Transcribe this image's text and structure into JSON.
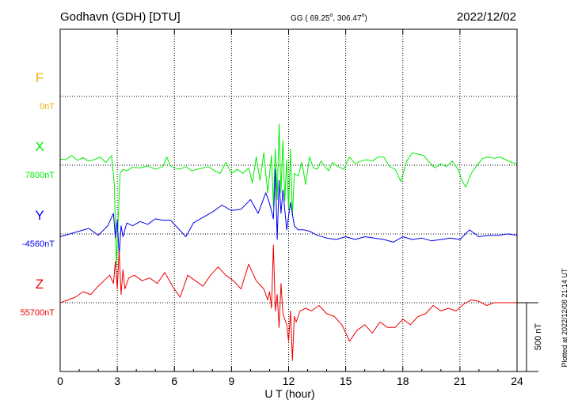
{
  "header": {
    "station": "Godhavn (GDH)  [DTU]",
    "coords_prefix": "GG ( 69.25",
    "coords_mid": ", 306.47",
    "coords_suffix": ")",
    "degree_sign": "o",
    "date": "2022/12/02"
  },
  "footer": {
    "plotted_note": "Plotted at 2022/12/08 21:14 UT"
  },
  "chart_data": {
    "type": "line",
    "title": "Godhavn (GDH)  [DTU]",
    "xlabel": "U T (hour)",
    "xlim": [
      0,
      24
    ],
    "xticks": [
      0,
      3,
      6,
      9,
      12,
      15,
      18,
      21,
      24
    ],
    "grid": true,
    "scale_bar": {
      "label": "500 nT",
      "value_nT": 500
    },
    "series": [
      {
        "name": "F",
        "baseline_label": "0nT",
        "color": "#f0b000",
        "x": [],
        "y": []
      },
      {
        "name": "X",
        "baseline_label": "7800nT",
        "color": "#00ee00",
        "x": [
          0,
          0.3,
          0.6,
          0.9,
          1.2,
          1.5,
          1.8,
          2.1,
          2.4,
          2.7,
          2.85,
          2.95,
          3.05,
          3.15,
          3.3,
          3.5,
          3.8,
          4.2,
          4.6,
          5.0,
          5.4,
          5.6,
          5.8,
          6.0,
          6.3,
          6.6,
          6.9,
          7.2,
          7.5,
          7.8,
          8.1,
          8.4,
          8.7,
          9.0,
          9.3,
          9.6,
          9.9,
          10.1,
          10.3,
          10.5,
          10.7,
          10.9,
          11.1,
          11.2,
          11.3,
          11.4,
          11.5,
          11.6,
          11.7,
          11.8,
          11.9,
          12.0,
          12.1,
          12.2,
          12.3,
          12.5,
          12.7,
          12.9,
          13.1,
          13.3,
          13.5,
          13.7,
          13.9,
          14.1,
          14.3,
          14.6,
          14.9,
          15.2,
          15.5,
          15.8,
          16.1,
          16.4,
          16.7,
          17.0,
          17.3,
          17.6,
          17.9,
          18.2,
          18.5,
          18.8,
          19.1,
          19.4,
          19.7,
          20.0,
          20.3,
          20.6,
          20.9,
          21.1,
          21.3,
          21.6,
          21.9,
          22.2,
          22.5,
          22.8,
          23.1,
          23.4,
          23.7,
          24.0
        ],
        "y": [
          45,
          40,
          70,
          35,
          55,
          30,
          40,
          60,
          20,
          70,
          -150,
          -730,
          -380,
          -60,
          -30,
          -40,
          -15,
          -20,
          -5,
          -30,
          -10,
          60,
          -5,
          -20,
          -30,
          -10,
          -40,
          -30,
          -20,
          -10,
          -40,
          -60,
          20,
          -60,
          -30,
          -60,
          -20,
          -130,
          60,
          -110,
          90,
          -200,
          70,
          -300,
          120,
          -250,
          300,
          -200,
          180,
          -260,
          40,
          -320,
          120,
          -370,
          -60,
          -80,
          20,
          -140,
          60,
          -20,
          -30,
          30,
          -10,
          -40,
          20,
          -10,
          -30,
          60,
          10,
          30,
          40,
          30,
          60,
          60,
          -10,
          -30,
          -120,
          30,
          90,
          80,
          70,
          20,
          -20,
          10,
          -10,
          30,
          -30,
          -110,
          -160,
          -60,
          0,
          50,
          60,
          50,
          60,
          40,
          20,
          10
        ]
      },
      {
        "name": "Y",
        "baseline_label": "-4560nT",
        "color": "#0000ee",
        "x": [
          0,
          0.5,
          1.0,
          1.5,
          2.0,
          2.5,
          2.8,
          2.9,
          3.0,
          3.1,
          3.2,
          3.3,
          3.5,
          3.8,
          4.2,
          4.6,
          5.0,
          5.4,
          5.8,
          6.2,
          6.6,
          7.0,
          7.5,
          8.0,
          8.5,
          9.0,
          9.5,
          10.0,
          10.4,
          10.8,
          11.0,
          11.2,
          11.3,
          11.4,
          11.5,
          11.6,
          11.7,
          11.9,
          12.1,
          12.3,
          12.5,
          12.8,
          13.1,
          13.5,
          14.0,
          14.5,
          15.0,
          15.5,
          16.0,
          16.5,
          17.0,
          17.5,
          18.0,
          18.5,
          19.0,
          19.5,
          20.0,
          20.5,
          21.0,
          21.5,
          22.0,
          22.5,
          23.0,
          23.5,
          24.0
        ],
        "y": [
          -20,
          0,
          20,
          40,
          -10,
          60,
          150,
          -30,
          100,
          -160,
          60,
          -20,
          80,
          60,
          90,
          70,
          110,
          100,
          100,
          40,
          -20,
          80,
          120,
          160,
          210,
          170,
          180,
          250,
          150,
          300,
          220,
          110,
          470,
          -40,
          390,
          150,
          320,
          30,
          230,
          60,
          30,
          30,
          20,
          -10,
          -30,
          -40,
          -20,
          -40,
          -20,
          -30,
          -40,
          -60,
          -20,
          -40,
          -30,
          -50,
          -40,
          -30,
          -40,
          30,
          -20,
          -10,
          -10,
          0,
          -10
        ]
      },
      {
        "name": "Z",
        "baseline_label": "55700nT",
        "color": "#ee0000",
        "x": [
          0,
          0.4,
          0.8,
          1.2,
          1.6,
          2.0,
          2.3,
          2.6,
          2.8,
          2.9,
          3.0,
          3.1,
          3.2,
          3.3,
          3.4,
          3.6,
          3.9,
          4.3,
          4.7,
          5.1,
          5.5,
          5.9,
          6.3,
          6.7,
          7.1,
          7.5,
          7.9,
          8.3,
          8.7,
          9.1,
          9.5,
          9.9,
          10.3,
          10.7,
          10.9,
          11.0,
          11.1,
          11.2,
          11.3,
          11.4,
          11.5,
          11.6,
          11.7,
          11.8,
          11.9,
          12.0,
          12.1,
          12.2,
          12.3,
          12.4,
          12.6,
          12.9,
          13.2,
          13.6,
          14.0,
          14.4,
          14.8,
          15.2,
          15.6,
          16.0,
          16.4,
          16.8,
          17.2,
          17.6,
          18.0,
          18.4,
          18.8,
          19.2,
          19.6,
          20.0,
          20.4,
          20.8,
          21.2,
          21.6,
          22.0,
          22.4,
          22.8,
          23.2,
          23.6,
          24.0
        ],
        "y": [
          0,
          20,
          40,
          80,
          60,
          120,
          160,
          200,
          140,
          300,
          100,
          380,
          60,
          240,
          100,
          180,
          200,
          160,
          180,
          140,
          220,
          120,
          40,
          200,
          160,
          120,
          200,
          260,
          200,
          160,
          100,
          280,
          160,
          100,
          20,
          80,
          -40,
          420,
          -60,
          60,
          -180,
          140,
          -80,
          -120,
          -160,
          -280,
          -60,
          -420,
          -100,
          -140,
          -60,
          -40,
          -60,
          -20,
          -80,
          -100,
          -160,
          -280,
          -200,
          -160,
          -220,
          -140,
          -180,
          -180,
          -120,
          -160,
          -100,
          -80,
          -20,
          -60,
          -40,
          -60,
          -10,
          20,
          10,
          -20,
          0,
          0,
          0,
          0
        ]
      }
    ]
  }
}
